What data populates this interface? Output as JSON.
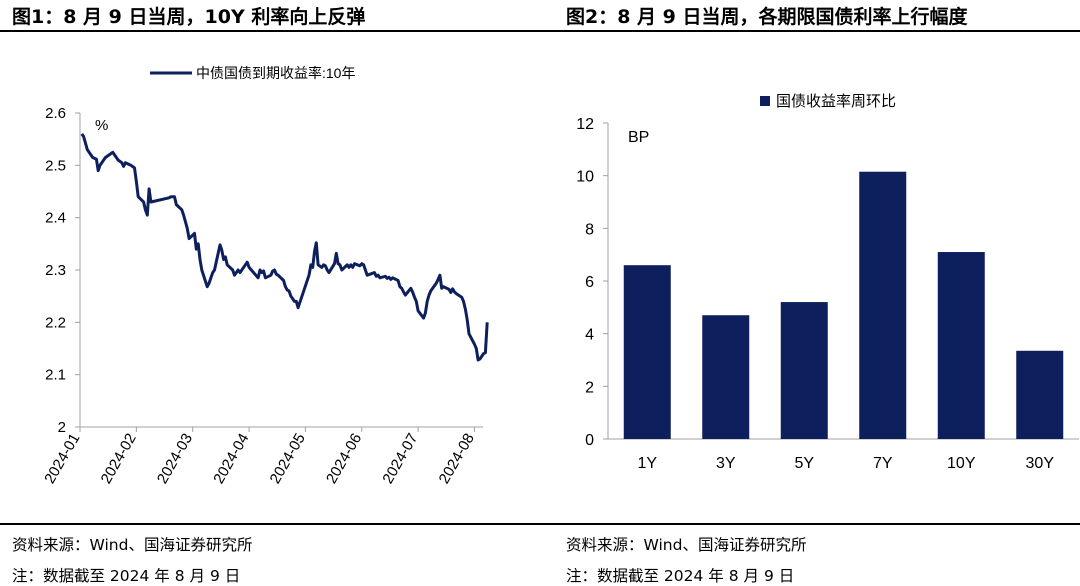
{
  "left": {
    "figure_title": "图1：8 月 9 日当周，10Y 利率向上反弹",
    "source": "资料来源：Wind、国海证券研究所",
    "note": "注：数据截至 2024 年 8 月 9 日"
  },
  "right": {
    "figure_title": "图2：8 月 9 日当周，各期限国债利率上行幅度",
    "source": "资料来源：Wind、国海证券研究所",
    "note": "注：数据截至 2024 年 8 月 9 日"
  },
  "colors": {
    "series": "#0d1f5c",
    "axis": "#a0a0a0",
    "text": "#000000"
  },
  "chart_data": [
    {
      "type": "line",
      "title": "",
      "unit_label": "%",
      "xlabel": "",
      "ylabel": "",
      "ylim": [
        2,
        2.6
      ],
      "yticks": [
        "2",
        "2.1",
        "2.2",
        "2.3",
        "2.4",
        "2.5",
        "2.6"
      ],
      "xticks": [
        "2024-01",
        "2024-02",
        "2024-03",
        "2024-04",
        "2024-05",
        "2024-06",
        "2024-07",
        "2024-08"
      ],
      "legend": "top-center",
      "grid": false,
      "series": [
        {
          "name": "中债国债到期收益率:10年",
          "points": [
            [
              "2024-01-02",
              2.56
            ],
            [
              "2024-01-03",
              2.555
            ],
            [
              "2024-01-05",
              2.53
            ],
            [
              "2024-01-08",
              2.515
            ],
            [
              "2024-01-10",
              2.512
            ],
            [
              "2024-01-11",
              2.49
            ],
            [
              "2024-01-12",
              2.5
            ],
            [
              "2024-01-15",
              2.515
            ],
            [
              "2024-01-17",
              2.52
            ],
            [
              "2024-01-19",
              2.525
            ],
            [
              "2024-01-22",
              2.51
            ],
            [
              "2024-01-24",
              2.505
            ],
            [
              "2024-01-25",
              2.498
            ],
            [
              "2024-01-26",
              2.505
            ],
            [
              "2024-01-29",
              2.5
            ],
            [
              "2024-01-31",
              2.495
            ],
            [
              "2024-02-01",
              2.47
            ],
            [
              "2024-02-02",
              2.44
            ],
            [
              "2024-02-05",
              2.43
            ],
            [
              "2024-02-06",
              2.415
            ],
            [
              "2024-02-07",
              2.405
            ],
            [
              "2024-02-08",
              2.455
            ],
            [
              "2024-02-09",
              2.43
            ],
            [
              "2024-02-19",
              2.438
            ],
            [
              "2024-02-20",
              2.44
            ],
            [
              "2024-02-22",
              2.44
            ],
            [
              "2024-02-23",
              2.425
            ],
            [
              "2024-02-26",
              2.415
            ],
            [
              "2024-02-27",
              2.405
            ],
            [
              "2024-02-29",
              2.38
            ],
            [
              "2024-03-01",
              2.36
            ],
            [
              "2024-03-04",
              2.37
            ],
            [
              "2024-03-05",
              2.34
            ],
            [
              "2024-03-06",
              2.35
            ],
            [
              "2024-03-07",
              2.32
            ],
            [
              "2024-03-08",
              2.3
            ],
            [
              "2024-03-11",
              2.268
            ],
            [
              "2024-03-12",
              2.275
            ],
            [
              "2024-03-13",
              2.285
            ],
            [
              "2024-03-14",
              2.295
            ],
            [
              "2024-03-15",
              2.3
            ],
            [
              "2024-03-18",
              2.348
            ],
            [
              "2024-03-19",
              2.338
            ],
            [
              "2024-03-20",
              2.32
            ],
            [
              "2024-03-21",
              2.325
            ],
            [
              "2024-03-22",
              2.31
            ],
            [
              "2024-03-25",
              2.3
            ],
            [
              "2024-03-26",
              2.29
            ],
            [
              "2024-03-27",
              2.295
            ],
            [
              "2024-03-28",
              2.3
            ],
            [
              "2024-03-29",
              2.295
            ],
            [
              "2024-04-01",
              2.31
            ],
            [
              "2024-04-02",
              2.315
            ],
            [
              "2024-04-03",
              2.305
            ],
            [
              "2024-04-08",
              2.285
            ],
            [
              "2024-04-09",
              2.3
            ],
            [
              "2024-04-10",
              2.295
            ],
            [
              "2024-04-11",
              2.298
            ],
            [
              "2024-04-12",
              2.285
            ],
            [
              "2024-04-15",
              2.29
            ],
            [
              "2024-04-16",
              2.298
            ],
            [
              "2024-04-17",
              2.3
            ],
            [
              "2024-04-18",
              2.292
            ],
            [
              "2024-04-19",
              2.29
            ],
            [
              "2024-04-22",
              2.28
            ],
            [
              "2024-04-23",
              2.268
            ],
            [
              "2024-04-24",
              2.262
            ],
            [
              "2024-04-25",
              2.26
            ],
            [
              "2024-04-26",
              2.25
            ],
            [
              "2024-04-28",
              2.24
            ],
            [
              "2024-04-29",
              2.24
            ],
            [
              "2024-04-30",
              2.228
            ],
            [
              "2024-05-06",
              2.29
            ],
            [
              "2024-05-07",
              2.31
            ],
            [
              "2024-05-08",
              2.305
            ],
            [
              "2024-05-09",
              2.335
            ],
            [
              "2024-05-10",
              2.352
            ],
            [
              "2024-05-11",
              2.31
            ],
            [
              "2024-05-13",
              2.305
            ],
            [
              "2024-05-14",
              2.31
            ],
            [
              "2024-05-15",
              2.308
            ],
            [
              "2024-05-16",
              2.3
            ],
            [
              "2024-05-17",
              2.295
            ],
            [
              "2024-05-20",
              2.312
            ],
            [
              "2024-05-21",
              2.332
            ],
            [
              "2024-05-22",
              2.312
            ],
            [
              "2024-05-23",
              2.31
            ],
            [
              "2024-05-24",
              2.3
            ],
            [
              "2024-05-27",
              2.31
            ],
            [
              "2024-05-28",
              2.305
            ],
            [
              "2024-05-29",
              2.31
            ],
            [
              "2024-05-30",
              2.305
            ],
            [
              "2024-05-31",
              2.312
            ],
            [
              "2024-06-03",
              2.308
            ],
            [
              "2024-06-04",
              2.312
            ],
            [
              "2024-06-05",
              2.31
            ],
            [
              "2024-06-06",
              2.3
            ],
            [
              "2024-06-07",
              2.29
            ],
            [
              "2024-06-11",
              2.295
            ],
            [
              "2024-06-12",
              2.288
            ],
            [
              "2024-06-13",
              2.29
            ],
            [
              "2024-06-14",
              2.285
            ],
            [
              "2024-06-17",
              2.288
            ],
            [
              "2024-06-18",
              2.284
            ],
            [
              "2024-06-19",
              2.286
            ],
            [
              "2024-06-20",
              2.282
            ],
            [
              "2024-06-21",
              2.285
            ],
            [
              "2024-06-24",
              2.28
            ],
            [
              "2024-06-25",
              2.268
            ],
            [
              "2024-06-26",
              2.265
            ],
            [
              "2024-06-27",
              2.258
            ],
            [
              "2024-06-28",
              2.252
            ],
            [
              "2024-07-01",
              2.265
            ],
            [
              "2024-07-02",
              2.258
            ],
            [
              "2024-07-03",
              2.248
            ],
            [
              "2024-07-04",
              2.24
            ],
            [
              "2024-07-05",
              2.222
            ],
            [
              "2024-07-08",
              2.208
            ],
            [
              "2024-07-09",
              2.218
            ],
            [
              "2024-07-10",
              2.24
            ],
            [
              "2024-07-11",
              2.252
            ],
            [
              "2024-07-12",
              2.26
            ],
            [
              "2024-07-15",
              2.275
            ],
            [
              "2024-07-16",
              2.282
            ],
            [
              "2024-07-17",
              2.29
            ],
            [
              "2024-07-18",
              2.265
            ],
            [
              "2024-07-19",
              2.268
            ],
            [
              "2024-07-22",
              2.263
            ],
            [
              "2024-07-23",
              2.257
            ],
            [
              "2024-07-24",
              2.264
            ],
            [
              "2024-07-25",
              2.258
            ],
            [
              "2024-07-26",
              2.255
            ],
            [
              "2024-07-29",
              2.248
            ],
            [
              "2024-07-30",
              2.24
            ],
            [
              "2024-07-31",
              2.225
            ],
            [
              "2024-08-01",
              2.205
            ],
            [
              "2024-08-02",
              2.178
            ],
            [
              "2024-08-05",
              2.158
            ],
            [
              "2024-08-06",
              2.15
            ],
            [
              "2024-08-07",
              2.128
            ],
            [
              "2024-08-08",
              2.13
            ],
            [
              "2024-08-09",
              2.135
            ],
            [
              "2024-08-10",
              2.14
            ],
            [
              "2024-08-11",
              2.142
            ],
            [
              "2024-08-12",
              2.2
            ]
          ]
        }
      ]
    },
    {
      "type": "bar",
      "title": "",
      "unit_label": "BP",
      "xlabel": "",
      "ylabel": "",
      "ylim": [
        0,
        12
      ],
      "yticks": [
        "0",
        "2",
        "4",
        "6",
        "8",
        "10",
        "12"
      ],
      "categories": [
        "1Y",
        "3Y",
        "5Y",
        "7Y",
        "10Y",
        "30Y"
      ],
      "legend": "top-center",
      "grid": false,
      "series": [
        {
          "name": "国债收益率周环比",
          "values": [
            6.6,
            4.7,
            5.2,
            10.15,
            7.1,
            3.35
          ]
        }
      ]
    }
  ]
}
